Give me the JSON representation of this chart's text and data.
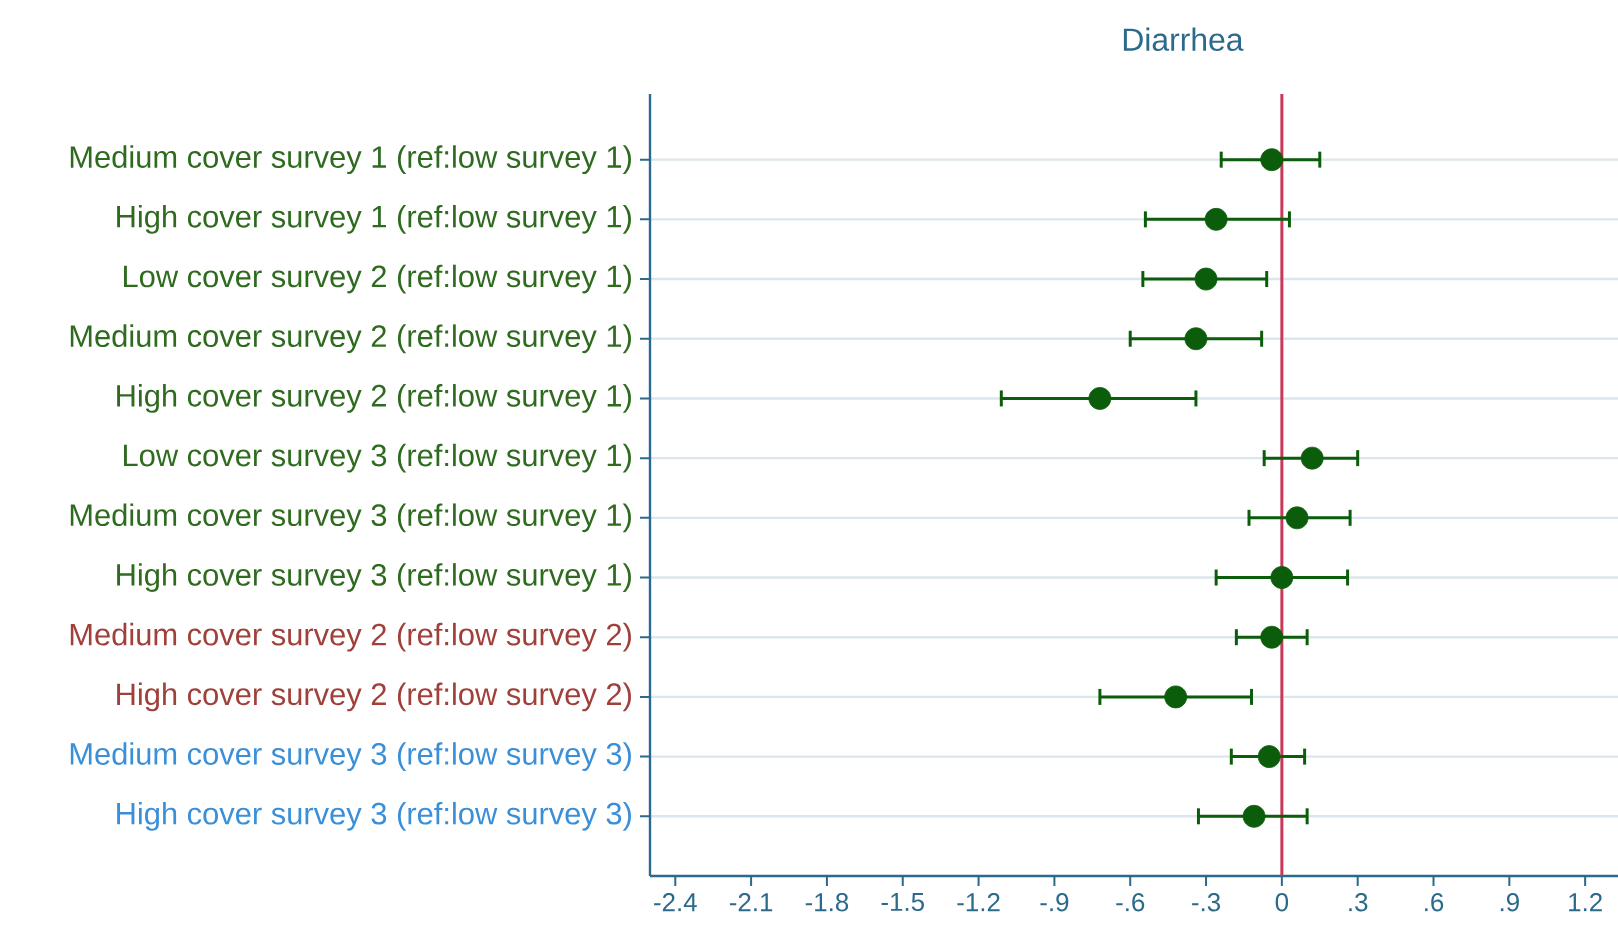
{
  "chart_data": {
    "type": "scatter",
    "orientation": "horizontal",
    "title": "Diarrhea",
    "categories": [
      "Medium cover survey 1 (ref:low survey 1)",
      "High cover survey 1 (ref:low survey 1)",
      "Low cover survey 2 (ref:low survey 1)",
      "Medium cover survey 2 (ref:low survey 1)",
      "High cover survey 2 (ref:low survey 1)",
      "Low cover survey 3 (ref:low survey 1)",
      "Medium cover survey 3 (ref:low survey 1)",
      "High cover survey 3 (ref:low survey 1)",
      "Medium cover survey 2 (ref:low survey 2)",
      "High cover survey 2 (ref:low survey 2)",
      "Medium cover survey 3 (ref:low survey 3)",
      "High cover survey 3 (ref:low survey 3)"
    ],
    "values": [
      -0.04,
      -0.26,
      -0.3,
      -0.34,
      -0.72,
      0.12,
      0.06,
      0.0,
      -0.04,
      -0.42,
      -0.05,
      -0.11
    ],
    "errors": [
      [
        -0.24,
        0.15
      ],
      [
        -0.54,
        0.03
      ],
      [
        -0.55,
        -0.06
      ],
      [
        -0.6,
        -0.08
      ],
      [
        -1.11,
        -0.34
      ],
      [
        -0.07,
        0.3
      ],
      [
        -0.13,
        0.27
      ],
      [
        -0.26,
        0.26
      ],
      [
        -0.18,
        0.1
      ],
      [
        -0.72,
        -0.12
      ],
      [
        -0.2,
        0.09
      ],
      [
        -0.33,
        0.1
      ]
    ],
    "color": "#0b5d0b",
    "marker": "circle",
    "grid": "y",
    "xlim": [
      -2.5,
      1.33
    ],
    "xticks": [
      -2.4,
      -2.1,
      -1.8,
      -1.5,
      -1.2,
      {
        "value": -0.9,
        "label": "-.9"
      },
      {
        "value": -0.6,
        "label": "-.6"
      },
      {
        "value": -0.3,
        "label": "-.3"
      },
      0,
      {
        "value": 0.3,
        "label": ".3"
      },
      {
        "value": 0.6,
        "label": ".6"
      },
      {
        "value": 0.9,
        "label": ".9"
      },
      1.2
    ],
    "ref_lines": [
      {
        "axis": "x",
        "value": 0,
        "color": "#c8385a"
      }
    ]
  }
}
